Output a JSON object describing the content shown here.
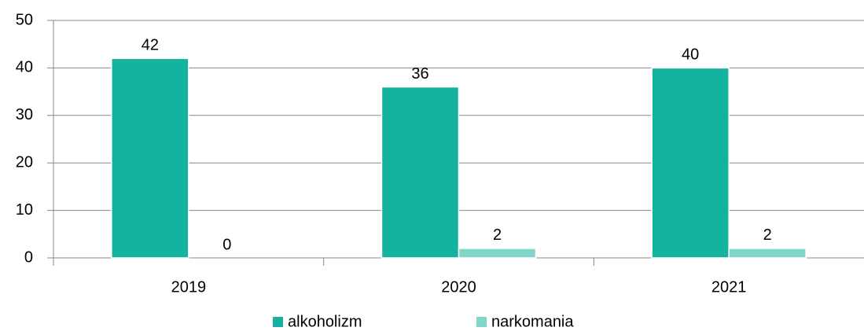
{
  "chart_data": {
    "type": "bar",
    "categories": [
      "2019",
      "2020",
      "2021"
    ],
    "series": [
      {
        "name": "alkoholizm",
        "color": "#14b3a0",
        "values": [
          42,
          36,
          40
        ]
      },
      {
        "name": "narkomania",
        "color": "#80d6c9",
        "values": [
          0,
          2,
          2
        ]
      }
    ],
    "ylim": [
      0,
      50
    ],
    "yticks": [
      0,
      10,
      20,
      30,
      40,
      50
    ],
    "grid": true,
    "legend": "bottom"
  }
}
